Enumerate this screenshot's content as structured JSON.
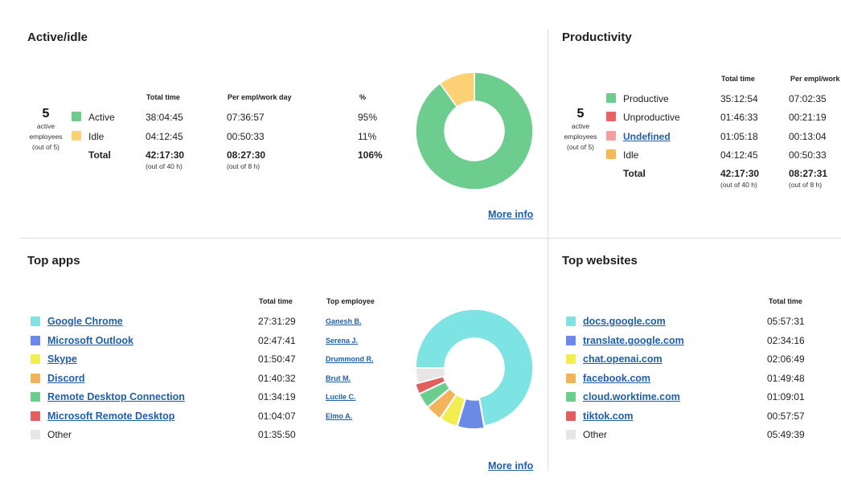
{
  "active_idle": {
    "title": "Active/idle",
    "employees": {
      "count": "5",
      "line1": "active",
      "line2": "employees",
      "line3": "(out of 5)"
    },
    "headers": {
      "total": "Total time",
      "per": "Per empl/work day",
      "pct": "%"
    },
    "rows": [
      {
        "label": "Active",
        "total": "38:04:45",
        "per": "07:36:57",
        "pct": "95%",
        "color": "#6ccd8e"
      },
      {
        "label": "Idle",
        "total": "04:12:45",
        "per": "00:50:33",
        "pct": "11%",
        "color": "#fcd074"
      }
    ],
    "total_row": {
      "label": "Total",
      "total": "42:17:30",
      "total_sub": "(out of 40 h)",
      "per": "08:27:30",
      "per_sub": "(out of 8 h)",
      "pct": "106%"
    },
    "more_info": "More info"
  },
  "productivity": {
    "title": "Productivity",
    "employees": {
      "count": "5",
      "line1": "active",
      "line2": "employees",
      "line3": "(out of 5)"
    },
    "headers": {
      "total": "Total time",
      "per": "Per empl/work"
    },
    "rows": [
      {
        "label": "Productive",
        "total": "35:12:54",
        "per": "07:02:35",
        "color": "#6ccd8e"
      },
      {
        "label": "Unproductive",
        "total": "01:46:33",
        "per": "00:21:19",
        "color": "#e86464"
      },
      {
        "label": "Undefined",
        "total": "01:05:18",
        "per": "00:13:04",
        "color": "#f59e9e"
      },
      {
        "label": "Idle",
        "total": "04:12:45",
        "per": "00:50:33",
        "color": "#f4ba5a"
      }
    ],
    "total_row": {
      "label": "Total",
      "total": "42:17:30",
      "total_sub": "(out of 40 h)",
      "per": "08:27:31",
      "per_sub": "(out of 8 h)"
    }
  },
  "top_apps": {
    "title": "Top apps",
    "headers": {
      "total": "Total time",
      "employee": "Top employee"
    },
    "rows": [
      {
        "name": "Google Chrome",
        "total": "27:31:29",
        "employee": "Ganesh B.",
        "color": "#7de3e3"
      },
      {
        "name": "Microsoft Outlook",
        "total": "02:47:41",
        "employee": "Serena J.",
        "color": "#6a8ae6"
      },
      {
        "name": "Skype",
        "total": "01:50:47",
        "employee": "Drummond R.",
        "color": "#f2ee52"
      },
      {
        "name": "Discord",
        "total": "01:40:32",
        "employee": "Brut M.",
        "color": "#f2b45a"
      },
      {
        "name": "Remote Desktop Connection",
        "total": "01:34:19",
        "employee": "Lucile C.",
        "color": "#6ccd8e"
      },
      {
        "name": "Microsoft Remote Desktop",
        "total": "01:04:07",
        "employee": "Elmo A.",
        "color": "#e06060"
      },
      {
        "name": "Other",
        "total": "01:35:50",
        "employee": "",
        "color": "#e6e6e6"
      }
    ],
    "more_info": "More info"
  },
  "top_websites": {
    "title": "Top websites",
    "headers": {
      "total": "Total time"
    },
    "rows": [
      {
        "name": "docs.google.com",
        "total": "05:57:31",
        "color": "#7de3e3"
      },
      {
        "name": "translate.google.com",
        "total": "02:34:16",
        "color": "#6a8ae6"
      },
      {
        "name": "chat.openai.com",
        "total": "02:06:49",
        "color": "#f2ee52"
      },
      {
        "name": "facebook.com",
        "total": "01:49:48",
        "color": "#f2b45a"
      },
      {
        "name": "cloud.worktime.com",
        "total": "01:09:01",
        "color": "#6ccd8e"
      },
      {
        "name": "tiktok.com",
        "total": "00:57:57",
        "color": "#e06060"
      },
      {
        "name": "Other",
        "total": "05:49:39",
        "color": "#e6e6e6"
      }
    ]
  },
  "chart_data": [
    {
      "type": "pie",
      "title": "Active/idle",
      "labels": [
        "Active",
        "Idle"
      ],
      "values": [
        38.08,
        4.21
      ],
      "colors": [
        "#6ccd8e",
        "#fcd074"
      ]
    },
    {
      "type": "pie",
      "title": "Top apps",
      "labels": [
        "Google Chrome",
        "Microsoft Outlook",
        "Skype",
        "Discord",
        "Remote Desktop Connection",
        "Microsoft Remote Desktop",
        "Other"
      ],
      "values": [
        27.52,
        2.79,
        1.85,
        1.68,
        1.57,
        1.07,
        1.6
      ],
      "colors": [
        "#7de3e3",
        "#6a8ae6",
        "#f2ee52",
        "#f2b45a",
        "#6ccd8e",
        "#e06060",
        "#e6e6e6"
      ]
    }
  ]
}
